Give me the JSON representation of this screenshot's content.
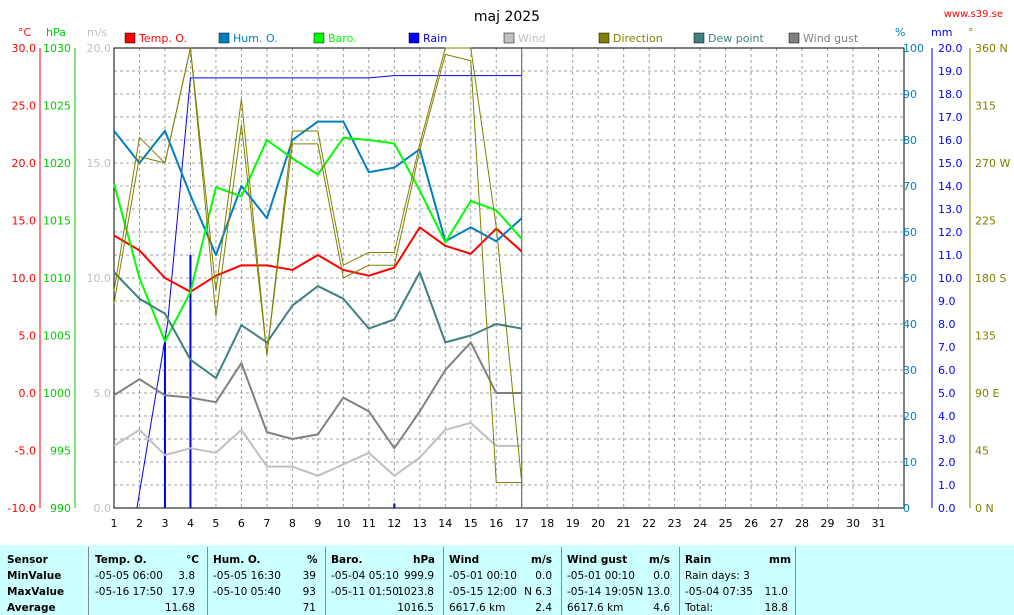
{
  "chart_data": {
    "type": "line",
    "title": "maj 2025",
    "site": "www.s39.se",
    "x": [
      1,
      2,
      3,
      4,
      5,
      6,
      7,
      8,
      9,
      10,
      11,
      12,
      13,
      14,
      15,
      16,
      17
    ],
    "x_ticks": [
      "1",
      "2",
      "3",
      "4",
      "5",
      "6",
      "7",
      "8",
      "9",
      "10",
      "11",
      "12",
      "13",
      "14",
      "15",
      "16",
      "17",
      "18",
      "19",
      "20",
      "21",
      "22",
      "23",
      "24",
      "25",
      "26",
      "27",
      "28",
      "29",
      "30",
      "31"
    ],
    "axes": {
      "temp": {
        "unit": "°C",
        "ticks": [
          "30.0",
          "25.0",
          "20.0",
          "15.0",
          "10.0",
          "5.0",
          "0.0",
          "-5.0",
          "-10.0"
        ],
        "range": [
          -10,
          30
        ],
        "color": "#ff0000"
      },
      "baro": {
        "unit": "hPa",
        "ticks": [
          "1030",
          "1025",
          "1020",
          "1015",
          "1010",
          "1005",
          "1000",
          "995",
          "990"
        ],
        "range": [
          990,
          1030
        ],
        "color": "#00cc00"
      },
      "wind": {
        "unit": "m/s",
        "ticks": [
          "20.0",
          "15.0",
          "10.0",
          "5.0",
          "0.0"
        ],
        "range": [
          0,
          20
        ],
        "color": "#c0c0c0"
      },
      "hum": {
        "unit": "%",
        "ticks": [
          "100",
          "90",
          "80",
          "70",
          "60",
          "50",
          "40",
          "30",
          "20",
          "10",
          "0"
        ],
        "range": [
          0,
          100
        ],
        "color": "#0080c0"
      },
      "rain": {
        "unit": "mm",
        "ticks": [
          "20.0",
          "19.0",
          "18.0",
          "17.0",
          "16.0",
          "15.0",
          "14.0",
          "13.0",
          "12.0",
          "11.0",
          "10.0",
          "9.0",
          "8.0",
          "7.0",
          "6.0",
          "5.0",
          "4.0",
          "3.0",
          "2.0",
          "1.0",
          "0.0"
        ],
        "range": [
          0,
          20
        ],
        "color": "#0000ff"
      },
      "dir": {
        "unit": "°",
        "ticks": [
          "360 N",
          "315",
          "270 W",
          "225",
          "180 S",
          "135",
          "90  E",
          "45",
          "0    N"
        ],
        "range": [
          0,
          360
        ],
        "color": "#808000"
      }
    },
    "legend": [
      "Temp. O.",
      "Hum. O.",
      "Baro.",
      "Rain",
      "Wind",
      "Direction",
      "Dew point",
      "Wind gust"
    ],
    "series": [
      {
        "name": "Temp. O.",
        "color": "#ff0000",
        "axis": "temp",
        "values": [
          13.7,
          12.4,
          10.0,
          8.8,
          10.2,
          11.1,
          11.1,
          10.7,
          12.0,
          10.7,
          10.2,
          10.9,
          14.4,
          12.8,
          12.1,
          14.3,
          12.3
        ]
      },
      {
        "name": "Hum. O.",
        "color": "#0080c0",
        "axis": "hum",
        "values": [
          82,
          75,
          82,
          68,
          55,
          70,
          63,
          80,
          84,
          84,
          73,
          74,
          78,
          58,
          61,
          58,
          63
        ]
      },
      {
        "name": "Baro.",
        "color": "#00ff00",
        "axis": "baro",
        "values": [
          1018.2,
          1010.0,
          1004.5,
          1008.8,
          1017.9,
          1017.1,
          1022.0,
          1020.4,
          1019.0,
          1022.2,
          1022.0,
          1021.7,
          1017.6,
          1013.1,
          1016.7,
          1015.9,
          1013.4
        ]
      },
      {
        "name": "Dew point",
        "color": "#408080",
        "axis": "temp",
        "values": [
          10.5,
          8.2,
          6.9,
          2.9,
          1.3,
          5.9,
          4.4,
          7.6,
          9.3,
          8.2,
          5.6,
          6.4,
          10.5,
          4.4,
          5.0,
          6.0,
          5.6
        ]
      },
      {
        "name": "Wind gust",
        "color": "#808080",
        "axis": "wind",
        "values": [
          4.9,
          5.6,
          4.9,
          4.8,
          4.6,
          6.3,
          3.3,
          3.0,
          3.2,
          4.8,
          4.2,
          2.6,
          4.2,
          6.0,
          7.2,
          5.0,
          5.0
        ]
      },
      {
        "name": "Wind",
        "color": "#c0c0c0",
        "axis": "wind",
        "values": [
          2.7,
          3.4,
          2.3,
          2.6,
          2.4,
          3.4,
          1.8,
          1.8,
          1.4,
          1.9,
          2.4,
          1.4,
          2.2,
          3.4,
          3.7,
          2.7,
          2.7
        ]
      },
      {
        "name": "Direction max",
        "color": "#808000",
        "axis": "dir",
        "values": [
          170,
          290,
          270,
          360,
          170,
          320,
          120,
          295,
          295,
          190,
          200,
          200,
          285,
          360,
          360,
          220,
          20
        ]
      },
      {
        "name": "Direction min",
        "color": "#808000",
        "axis": "dir",
        "values": [
          160,
          275,
          270,
          360,
          150,
          300,
          120,
          285,
          285,
          180,
          190,
          190,
          280,
          355,
          350,
          20,
          20
        ]
      }
    ],
    "rain_cumulative": {
      "x": [
        1.9,
        3.1,
        4,
        11,
        12,
        17
      ],
      "values": [
        0,
        8.0,
        18.7,
        18.7,
        18.8,
        18.8
      ]
    },
    "rain_daily": [
      {
        "x": 3,
        "value": 7.3
      },
      {
        "x": 4,
        "value": 11.0
      },
      {
        "x": 12,
        "value": 0.2
      }
    ]
  },
  "table": {
    "headers": [
      {
        "label": "Sensor",
        "unit": ""
      },
      {
        "label": "Temp. O.",
        "unit": "°C"
      },
      {
        "label": "Hum. O.",
        "unit": "%"
      },
      {
        "label": "Baro.",
        "unit": "hPa"
      },
      {
        "label": "Wind",
        "unit": "m/s"
      },
      {
        "label": "Wind gust",
        "unit": "m/s"
      },
      {
        "label": "Rain",
        "unit": "mm"
      }
    ],
    "rows": [
      {
        "label": "MinValue",
        "temp": [
          "-05-05  06:00",
          "3.8"
        ],
        "hum": [
          "-05-05  16:30",
          "39"
        ],
        "baro": [
          "-05-04  05:10",
          "999.9"
        ],
        "wind": [
          "-05-01  00:10",
          "0.0"
        ],
        "gust": [
          "-05-01  00:10",
          "0.0"
        ],
        "rain": [
          "Rain days: 3",
          ""
        ]
      },
      {
        "label": "MaxValue",
        "temp": [
          "-05-16  17:50",
          "17.9"
        ],
        "hum": [
          "-05-10  05:40",
          "93"
        ],
        "baro": [
          "-05-11  01:50",
          "1023.8"
        ],
        "wind": [
          "-05-15  12:00",
          "N 6.3"
        ],
        "gust": [
          "-05-14  19:05",
          "N 13.0"
        ],
        "rain": [
          "-05-04  07:35",
          "11.0"
        ]
      },
      {
        "label": "Average",
        "temp": [
          "",
          "11.68"
        ],
        "hum": [
          "",
          "71"
        ],
        "baro": [
          "",
          "1016.5"
        ],
        "wind": [
          "6617.6 km",
          "2.4"
        ],
        "gust": [
          "6617.6 km",
          "4.6"
        ],
        "rain": [
          "Total:",
          "18.8"
        ]
      }
    ]
  }
}
